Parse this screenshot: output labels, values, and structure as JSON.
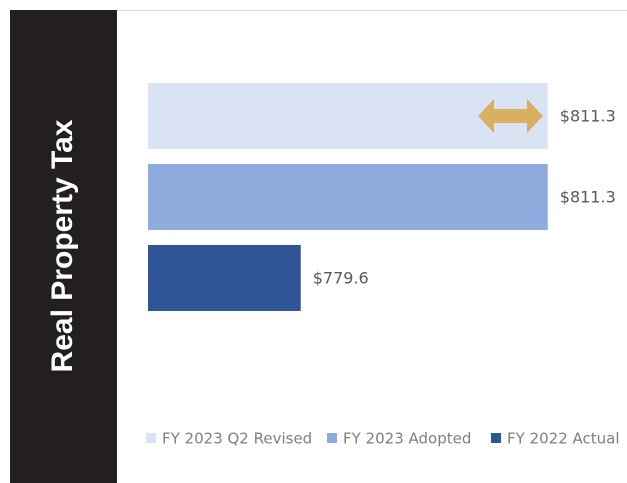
{
  "chart_data": {
    "type": "bar",
    "orientation": "horizontal",
    "title": "Real Property Tax",
    "categories": [
      null
    ],
    "series": [
      {
        "name": "FY 2023 Q2 Revised",
        "color": "#dae3f3",
        "values": [
          811.3
        ],
        "value_labels": [
          "$811.3"
        ]
      },
      {
        "name": "FY 2023 Adopted",
        "color": "#8faadc",
        "values": [
          811.3
        ],
        "value_labels": [
          "$811.3"
        ]
      },
      {
        "name": "FY 2022 Actual",
        "color": "#2f5597",
        "values": [
          779.6
        ],
        "value_labels": [
          "$779.6"
        ]
      }
    ],
    "xlim": [
      760,
      815
    ],
    "legend": "bottom"
  }
}
